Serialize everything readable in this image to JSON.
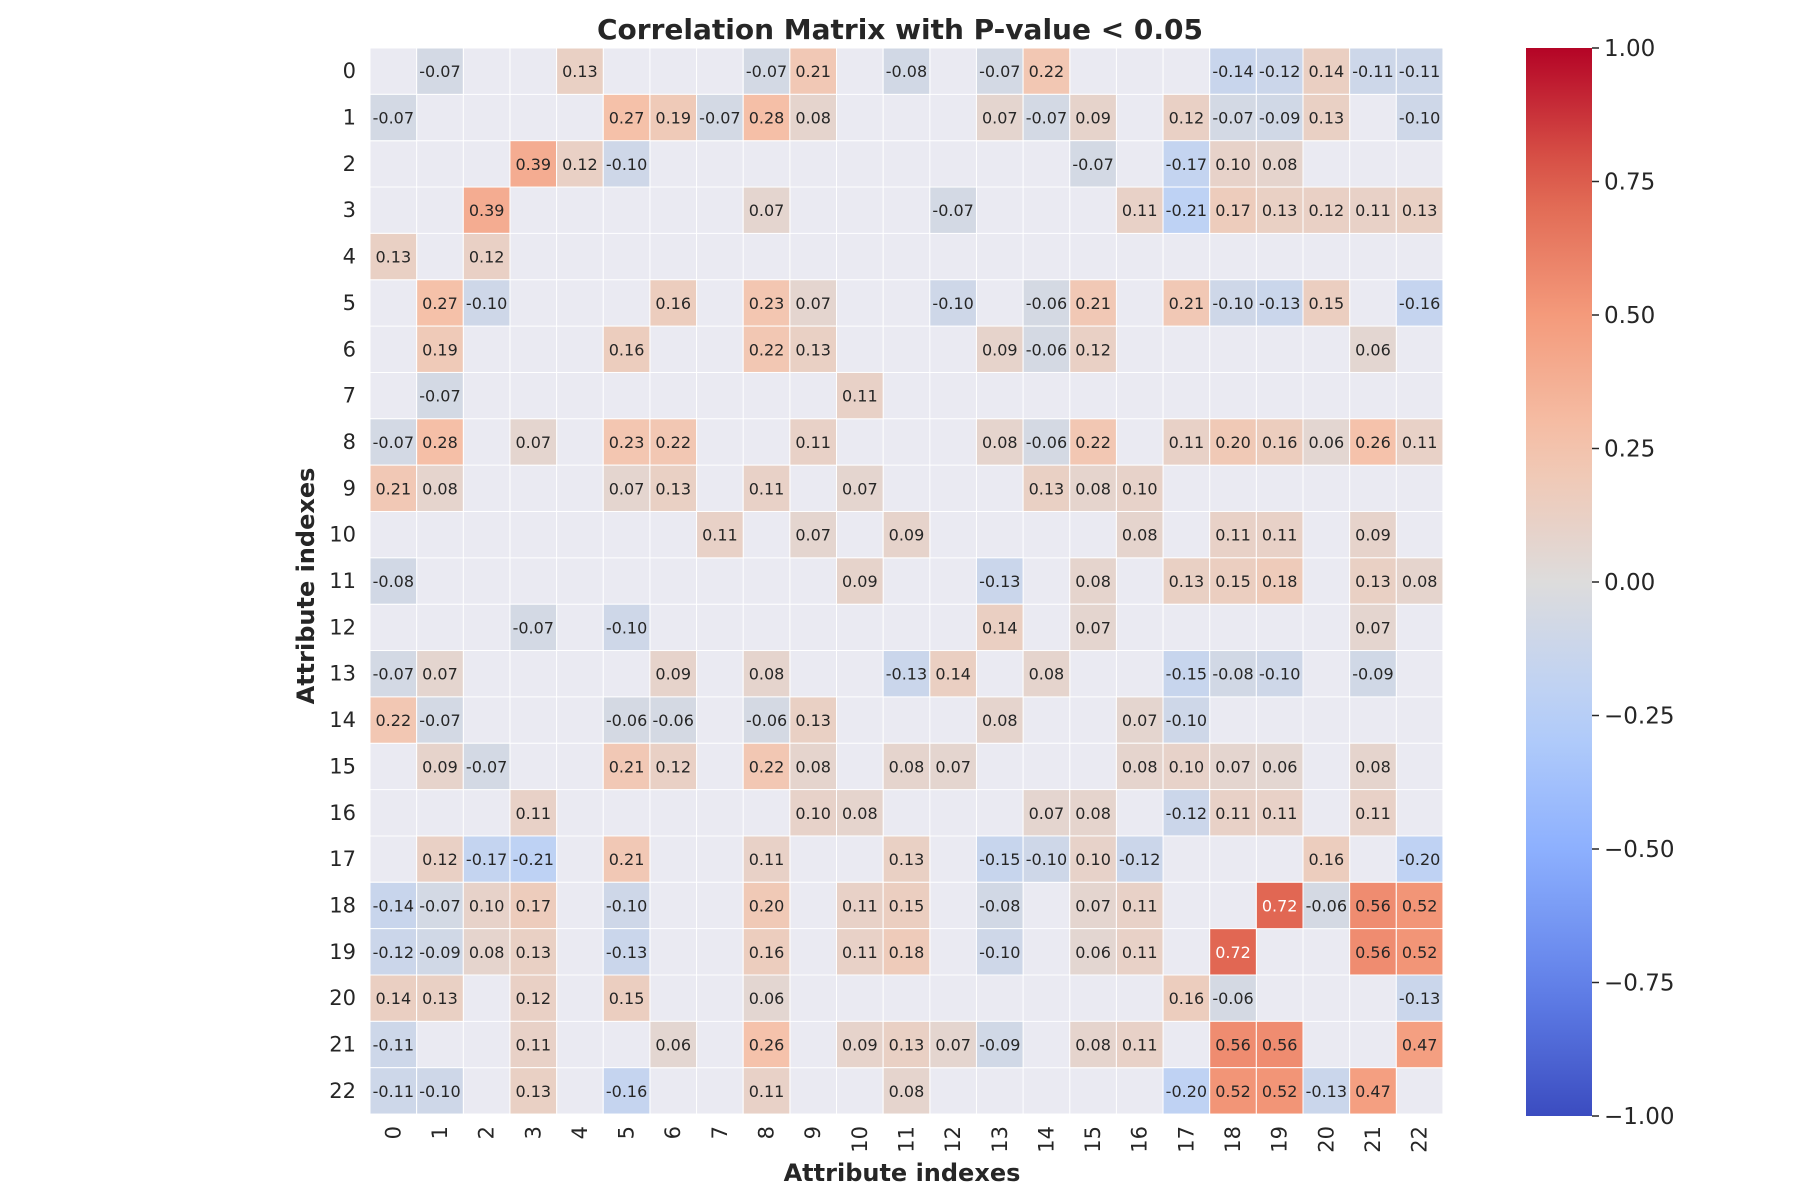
{
  "chart_data": {
    "type": "heatmap",
    "title": "Correlation Matrix with P-value < 0.05",
    "xlabel": "Attribute indexes",
    "ylabel": "Attribute indexes",
    "x_categories": [
      "0",
      "1",
      "2",
      "3",
      "4",
      "5",
      "6",
      "7",
      "8",
      "9",
      "10",
      "11",
      "12",
      "13",
      "14",
      "15",
      "16",
      "17",
      "18",
      "19",
      "20",
      "21",
      "22"
    ],
    "y_categories": [
      "0",
      "1",
      "2",
      "3",
      "4",
      "5",
      "6",
      "7",
      "8",
      "9",
      "10",
      "11",
      "12",
      "13",
      "14",
      "15",
      "16",
      "17",
      "18",
      "19",
      "20",
      "21",
      "22"
    ],
    "value_range": [
      -1,
      1
    ],
    "colormap": "coolwarm",
    "colorbar_ticks": [
      "1.00",
      "0.75",
      "0.50",
      "0.25",
      "0.00",
      "−0.25",
      "−0.50",
      "−0.75",
      "−1.00"
    ],
    "colorbar_tick_values": [
      1.0,
      0.75,
      0.5,
      0.25,
      0.0,
      -0.25,
      -0.5,
      -0.75,
      -1.0
    ],
    "masked_color": "#eaeaf2",
    "cells": [
      [
        0,
        1,
        -0.07
      ],
      [
        0,
        4,
        0.13
      ],
      [
        0,
        8,
        -0.07
      ],
      [
        0,
        9,
        0.21
      ],
      [
        0,
        11,
        -0.08
      ],
      [
        0,
        13,
        -0.07
      ],
      [
        0,
        14,
        0.22
      ],
      [
        0,
        18,
        -0.14
      ],
      [
        0,
        19,
        -0.12
      ],
      [
        0,
        20,
        0.14
      ],
      [
        0,
        21,
        -0.11
      ],
      [
        0,
        22,
        -0.11
      ],
      [
        1,
        0,
        -0.07
      ],
      [
        1,
        5,
        0.27
      ],
      [
        1,
        6,
        0.19
      ],
      [
        1,
        7,
        -0.07
      ],
      [
        1,
        8,
        0.28
      ],
      [
        1,
        9,
        0.08
      ],
      [
        1,
        13,
        0.07
      ],
      [
        1,
        14,
        -0.07
      ],
      [
        1,
        15,
        0.09
      ],
      [
        1,
        17,
        0.12
      ],
      [
        1,
        18,
        -0.07
      ],
      [
        1,
        19,
        -0.09
      ],
      [
        1,
        20,
        0.13
      ],
      [
        1,
        22,
        -0.1
      ],
      [
        2,
        3,
        0.39
      ],
      [
        2,
        4,
        0.12
      ],
      [
        2,
        5,
        -0.1
      ],
      [
        2,
        15,
        -0.07
      ],
      [
        2,
        17,
        -0.17
      ],
      [
        2,
        18,
        0.1
      ],
      [
        2,
        19,
        0.08
      ],
      [
        3,
        2,
        0.39
      ],
      [
        3,
        8,
        0.07
      ],
      [
        3,
        12,
        -0.07
      ],
      [
        3,
        16,
        0.11
      ],
      [
        3,
        17,
        -0.21
      ],
      [
        3,
        18,
        0.17
      ],
      [
        3,
        19,
        0.13
      ],
      [
        3,
        20,
        0.12
      ],
      [
        3,
        21,
        0.11
      ],
      [
        3,
        22,
        0.13
      ],
      [
        4,
        0,
        0.13
      ],
      [
        4,
        2,
        0.12
      ],
      [
        5,
        1,
        0.27
      ],
      [
        5,
        2,
        -0.1
      ],
      [
        5,
        6,
        0.16
      ],
      [
        5,
        8,
        0.23
      ],
      [
        5,
        9,
        0.07
      ],
      [
        5,
        12,
        -0.1
      ],
      [
        5,
        14,
        -0.06
      ],
      [
        5,
        15,
        0.21
      ],
      [
        5,
        17,
        0.21
      ],
      [
        5,
        18,
        -0.1
      ],
      [
        5,
        19,
        -0.13
      ],
      [
        5,
        20,
        0.15
      ],
      [
        5,
        22,
        -0.16
      ],
      [
        6,
        1,
        0.19
      ],
      [
        6,
        5,
        0.16
      ],
      [
        6,
        8,
        0.22
      ],
      [
        6,
        9,
        0.13
      ],
      [
        6,
        13,
        0.09
      ],
      [
        6,
        14,
        -0.06
      ],
      [
        6,
        15,
        0.12
      ],
      [
        6,
        21,
        0.06
      ],
      [
        7,
        1,
        -0.07
      ],
      [
        7,
        10,
        0.11
      ],
      [
        8,
        0,
        -0.07
      ],
      [
        8,
        1,
        0.28
      ],
      [
        8,
        3,
        0.07
      ],
      [
        8,
        5,
        0.23
      ],
      [
        8,
        6,
        0.22
      ],
      [
        8,
        9,
        0.11
      ],
      [
        8,
        13,
        0.08
      ],
      [
        8,
        14,
        -0.06
      ],
      [
        8,
        15,
        0.22
      ],
      [
        8,
        17,
        0.11
      ],
      [
        8,
        18,
        0.2
      ],
      [
        8,
        19,
        0.16
      ],
      [
        8,
        20,
        0.06
      ],
      [
        8,
        21,
        0.26
      ],
      [
        8,
        22,
        0.11
      ],
      [
        9,
        0,
        0.21
      ],
      [
        9,
        1,
        0.08
      ],
      [
        9,
        5,
        0.07
      ],
      [
        9,
        6,
        0.13
      ],
      [
        9,
        8,
        0.11
      ],
      [
        9,
        10,
        0.07
      ],
      [
        9,
        14,
        0.13
      ],
      [
        9,
        15,
        0.08
      ],
      [
        9,
        16,
        0.1
      ],
      [
        10,
        7,
        0.11
      ],
      [
        10,
        9,
        0.07
      ],
      [
        10,
        11,
        0.09
      ],
      [
        10,
        16,
        0.08
      ],
      [
        10,
        18,
        0.11
      ],
      [
        10,
        19,
        0.11
      ],
      [
        10,
        21,
        0.09
      ],
      [
        11,
        0,
        -0.08
      ],
      [
        11,
        10,
        0.09
      ],
      [
        11,
        13,
        -0.13
      ],
      [
        11,
        15,
        0.08
      ],
      [
        11,
        17,
        0.13
      ],
      [
        11,
        18,
        0.15
      ],
      [
        11,
        19,
        0.18
      ],
      [
        11,
        21,
        0.13
      ],
      [
        11,
        22,
        0.08
      ],
      [
        12,
        3,
        -0.07
      ],
      [
        12,
        5,
        -0.1
      ],
      [
        12,
        13,
        0.14
      ],
      [
        12,
        15,
        0.07
      ],
      [
        12,
        21,
        0.07
      ],
      [
        13,
        0,
        -0.07
      ],
      [
        13,
        1,
        0.07
      ],
      [
        13,
        6,
        0.09
      ],
      [
        13,
        8,
        0.08
      ],
      [
        13,
        11,
        -0.13
      ],
      [
        13,
        12,
        0.14
      ],
      [
        13,
        14,
        0.08
      ],
      [
        13,
        17,
        -0.15
      ],
      [
        13,
        18,
        -0.08
      ],
      [
        13,
        19,
        -0.1
      ],
      [
        13,
        21,
        -0.09
      ],
      [
        14,
        0,
        0.22
      ],
      [
        14,
        1,
        -0.07
      ],
      [
        14,
        5,
        -0.06
      ],
      [
        14,
        6,
        -0.06
      ],
      [
        14,
        8,
        -0.06
      ],
      [
        14,
        9,
        0.13
      ],
      [
        14,
        13,
        0.08
      ],
      [
        14,
        16,
        0.07
      ],
      [
        14,
        17,
        -0.1
      ],
      [
        15,
        1,
        0.09
      ],
      [
        15,
        2,
        -0.07
      ],
      [
        15,
        5,
        0.21
      ],
      [
        15,
        6,
        0.12
      ],
      [
        15,
        8,
        0.22
      ],
      [
        15,
        9,
        0.08
      ],
      [
        15,
        11,
        0.08
      ],
      [
        15,
        12,
        0.07
      ],
      [
        15,
        16,
        0.08
      ],
      [
        15,
        17,
        0.1
      ],
      [
        15,
        18,
        0.07
      ],
      [
        15,
        19,
        0.06
      ],
      [
        15,
        21,
        0.08
      ],
      [
        16,
        3,
        0.11
      ],
      [
        16,
        9,
        0.1
      ],
      [
        16,
        10,
        0.08
      ],
      [
        16,
        14,
        0.07
      ],
      [
        16,
        15,
        0.08
      ],
      [
        16,
        17,
        -0.12
      ],
      [
        16,
        18,
        0.11
      ],
      [
        16,
        19,
        0.11
      ],
      [
        16,
        21,
        0.11
      ],
      [
        17,
        1,
        0.12
      ],
      [
        17,
        2,
        -0.17
      ],
      [
        17,
        3,
        -0.21
      ],
      [
        17,
        5,
        0.21
      ],
      [
        17,
        8,
        0.11
      ],
      [
        17,
        11,
        0.13
      ],
      [
        17,
        13,
        -0.15
      ],
      [
        17,
        14,
        -0.1
      ],
      [
        17,
        15,
        0.1
      ],
      [
        17,
        16,
        -0.12
      ],
      [
        17,
        20,
        0.16
      ],
      [
        17,
        22,
        -0.2
      ],
      [
        18,
        0,
        -0.14
      ],
      [
        18,
        1,
        -0.07
      ],
      [
        18,
        2,
        0.1
      ],
      [
        18,
        3,
        0.17
      ],
      [
        18,
        5,
        -0.1
      ],
      [
        18,
        8,
        0.2
      ],
      [
        18,
        10,
        0.11
      ],
      [
        18,
        11,
        0.15
      ],
      [
        18,
        13,
        -0.08
      ],
      [
        18,
        15,
        0.07
      ],
      [
        18,
        16,
        0.11
      ],
      [
        18,
        19,
        0.72
      ],
      [
        18,
        20,
        -0.06
      ],
      [
        18,
        21,
        0.56
      ],
      [
        18,
        22,
        0.52
      ],
      [
        19,
        0,
        -0.12
      ],
      [
        19,
        1,
        -0.09
      ],
      [
        19,
        2,
        0.08
      ],
      [
        19,
        3,
        0.13
      ],
      [
        19,
        5,
        -0.13
      ],
      [
        19,
        8,
        0.16
      ],
      [
        19,
        10,
        0.11
      ],
      [
        19,
        11,
        0.18
      ],
      [
        19,
        13,
        -0.1
      ],
      [
        19,
        15,
        0.06
      ],
      [
        19,
        16,
        0.11
      ],
      [
        19,
        18,
        0.72
      ],
      [
        19,
        21,
        0.56
      ],
      [
        19,
        22,
        0.52
      ],
      [
        20,
        0,
        0.14
      ],
      [
        20,
        1,
        0.13
      ],
      [
        20,
        3,
        0.12
      ],
      [
        20,
        5,
        0.15
      ],
      [
        20,
        8,
        0.06
      ],
      [
        20,
        17,
        0.16
      ],
      [
        20,
        18,
        -0.06
      ],
      [
        20,
        22,
        -0.13
      ],
      [
        21,
        0,
        -0.11
      ],
      [
        21,
        3,
        0.11
      ],
      [
        21,
        6,
        0.06
      ],
      [
        21,
        8,
        0.26
      ],
      [
        21,
        10,
        0.09
      ],
      [
        21,
        11,
        0.13
      ],
      [
        21,
        12,
        0.07
      ],
      [
        21,
        13,
        -0.09
      ],
      [
        21,
        15,
        0.08
      ],
      [
        21,
        16,
        0.11
      ],
      [
        21,
        18,
        0.56
      ],
      [
        21,
        19,
        0.56
      ],
      [
        21,
        22,
        0.47
      ],
      [
        22,
        0,
        -0.11
      ],
      [
        22,
        1,
        -0.1
      ],
      [
        22,
        3,
        0.13
      ],
      [
        22,
        5,
        -0.16
      ],
      [
        22,
        8,
        0.11
      ],
      [
        22,
        11,
        0.08
      ],
      [
        22,
        17,
        -0.2
      ],
      [
        22,
        18,
        0.52
      ],
      [
        22,
        19,
        0.52
      ],
      [
        22,
        20,
        -0.13
      ],
      [
        22,
        21,
        0.47
      ]
    ]
  }
}
